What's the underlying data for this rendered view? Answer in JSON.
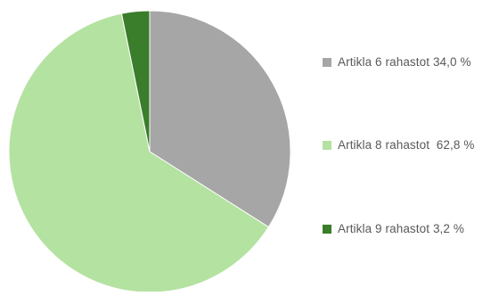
{
  "chart_data": {
    "type": "pie",
    "title": "",
    "start_angle_deg": 0,
    "direction": "clockwise",
    "legend_position": "right",
    "slices": [
      {
        "label": "Artikla 6 rahastot 34,0 %",
        "value": 34.0,
        "color": "#a6a6a6"
      },
      {
        "label": "Artikla 8 rahastot  62,8 %",
        "value": 62.8,
        "color": "#b4e2a1"
      },
      {
        "label": "Artikla 9 rahastot 3,2 %",
        "value": 3.2,
        "color": "#3a7d2a"
      }
    ]
  }
}
